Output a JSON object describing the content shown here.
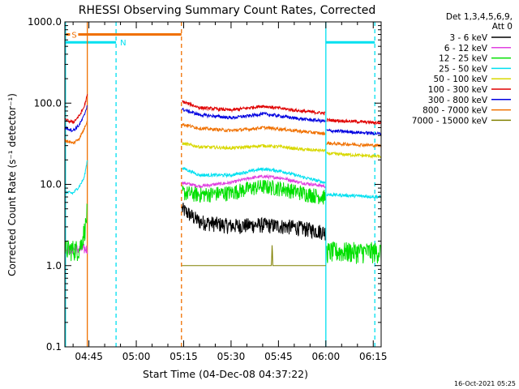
{
  "chart_data": {
    "type": "line",
    "title": "RHESSI Observing Summary Count Rates, Corrected",
    "xlabel": "Start Time (04-Dec-08 04:37:22)",
    "ylabel": "Corrected Count Rate (s⁻¹ detector⁻¹)",
    "yscale": "log",
    "ylim": [
      0.1,
      1000
    ],
    "xlim_minutes_after_04_00": [
      37.4,
      137.5
    ],
    "x_ticks": [
      {
        "label": "04:45",
        "minute": 45
      },
      {
        "label": "05:00",
        "minute": 60
      },
      {
        "label": "05:15",
        "minute": 75
      },
      {
        "label": "05:30",
        "minute": 90
      },
      {
        "label": "05:45",
        "minute": 105
      },
      {
        "label": "06:00",
        "minute": 120
      },
      {
        "label": "06:15",
        "minute": 135
      }
    ],
    "y_ticks": [
      {
        "label": "1000.0",
        "value": 1000
      },
      {
        "label": "100.0",
        "value": 100
      },
      {
        "label": "10.0",
        "value": 10
      },
      {
        "label": "1.0",
        "value": 1
      },
      {
        "label": "0.1",
        "value": 0.1
      }
    ],
    "legend": {
      "header1": "Det 1,3,4,5,6,9,",
      "header2": "Att 0",
      "placement": "right"
    },
    "series": [
      {
        "name": "3 - 6 keV",
        "color": "#000000",
        "segments": [
          {
            "x": [
              74.5,
              80,
              90,
              100,
              110,
              119.8
            ],
            "y": [
              5.0,
              3.5,
              3.1,
              3.2,
              3.0,
              2.6
            ]
          },
          {
            "x": [
              120.2,
              137.5
            ],
            "y": [
              null,
              null
            ]
          }
        ]
      },
      {
        "name": "6 - 12 keV",
        "color": "#e040e0",
        "segments": [
          {
            "x": [
              37.5,
              44.5
            ],
            "y": [
              1.6,
              1.6
            ]
          },
          {
            "x": [
              74.5,
              80,
              90,
              96,
              100,
              106,
              112,
              119.8
            ],
            "y": [
              10.5,
              9.5,
              10.5,
              12.0,
              12.5,
              12.0,
              10.5,
              9.5
            ]
          }
        ]
      },
      {
        "name": "12 - 25 keV",
        "color": "#00e000",
        "segments": [
          {
            "x": [
              37.5,
              42,
              43,
              44.0,
              44.5
            ],
            "y": [
              1.6,
              1.6,
              2.2,
              3.2,
              4.8
            ]
          },
          {
            "x": [
              74.5,
              80,
              90,
              96,
              100,
              106,
              112,
              119.8
            ],
            "y": [
              8.0,
              7.5,
              8.0,
              9.0,
              9.5,
              9.0,
              8.0,
              7.0
            ]
          },
          {
            "x": [
              120.3,
              137.5
            ],
            "y": [
              1.5,
              1.5
            ]
          }
        ]
      },
      {
        "name": "25 - 50 keV",
        "color": "#00e0f0",
        "segments": [
          {
            "x": [
              37.5,
              40,
              42,
              43.5,
              44.5
            ],
            "y": [
              8.0,
              7.8,
              9.5,
              12,
              20
            ]
          },
          {
            "x": [
              74.5,
              80,
              90,
              96,
              100,
              106,
              112,
              119.8
            ],
            "y": [
              16,
              13,
              13,
              14.5,
              15.5,
              14.5,
              12.5,
              10.5
            ]
          },
          {
            "x": [
              120.3,
              137.5
            ],
            "y": [
              7.5,
              7.0
            ]
          }
        ]
      },
      {
        "name": "50 - 100 keV",
        "color": "#d8d800",
        "segments": [
          {
            "x": [
              74.5,
              80,
              90,
              96,
              100,
              106,
              112,
              119.8
            ],
            "y": [
              32,
              29,
              28,
              29,
              30,
              29,
              27,
              26
            ]
          },
          {
            "x": [
              120.3,
              137.5
            ],
            "y": [
              24,
              22
            ]
          }
        ]
      },
      {
        "name": "100 - 300 keV",
        "color": "#e00000",
        "segments": [
          {
            "x": [
              37.5,
              40,
              42,
              43.5,
              44.5
            ],
            "y": [
              62,
              58,
              70,
              90,
              125
            ]
          },
          {
            "x": [
              74.5,
              80,
              90,
              96,
              100,
              106,
              112,
              119.8
            ],
            "y": [
              105,
              88,
              82,
              88,
              92,
              86,
              80,
              75
            ]
          },
          {
            "x": [
              120.3,
              137.5
            ],
            "y": [
              62,
              57
            ]
          }
        ]
      },
      {
        "name": "300 - 800 keV",
        "color": "#0000e0",
        "segments": [
          {
            "x": [
              37.5,
              40,
              42,
              43.5,
              44.5
            ],
            "y": [
              50,
              46,
              54,
              70,
              95
            ]
          },
          {
            "x": [
              74.5,
              80,
              90,
              96,
              100,
              106,
              112,
              119.8
            ],
            "y": [
              84,
              72,
              66,
              70,
              74,
              69,
              64,
              60
            ]
          },
          {
            "x": [
              120.3,
              137.5
            ],
            "y": [
              46,
              42
            ]
          }
        ]
      },
      {
        "name": "800 - 7000 keV",
        "color": "#f07000",
        "segments": [
          {
            "x": [
              37.5,
              40,
              42,
              43.5,
              44.5
            ],
            "y": [
              35,
              32,
              37,
              48,
              62
            ]
          },
          {
            "x": [
              74.5,
              80,
              90,
              96,
              100,
              106,
              112,
              119.8
            ],
            "y": [
              55,
              49,
              46,
              48,
              50,
              48,
              45,
              42
            ]
          },
          {
            "x": [
              120.3,
              137.5
            ],
            "y": [
              32,
              30
            ]
          }
        ]
      },
      {
        "name": "7000 - 15000 keV",
        "color": "#808000",
        "segments": [
          {
            "x": [
              74.5,
              90,
              102.8,
              103.0,
              103.2,
              118,
              120
            ],
            "y": [
              1.0,
              1.0,
              1.0,
              2.0,
              1.0,
              1.0,
              1.0
            ]
          }
        ]
      }
    ],
    "annotations": [
      {
        "text": "S",
        "color": "#f07000",
        "x_start": 37.5,
        "x_end": 74.3,
        "y": 700
      },
      {
        "text": "N",
        "color": "#00e0f0",
        "x_start": 37.5,
        "x_end": 53.6,
        "y": 560
      },
      {
        "text": "",
        "color": "#00e0f0",
        "x_start": 120.0,
        "x_end": 135.5,
        "y": 560
      }
    ],
    "vertical_lines": [
      {
        "minute": 37.6,
        "color": "#00e0f0",
        "style": "solid"
      },
      {
        "minute": 44.5,
        "color": "#f07000",
        "style": "solid"
      },
      {
        "minute": 53.6,
        "color": "#00e0f0",
        "style": "dashed"
      },
      {
        "minute": 74.3,
        "color": "#f07000",
        "style": "dashed"
      },
      {
        "minute": 120.0,
        "color": "#00e0f0",
        "style": "solid"
      },
      {
        "minute": 135.5,
        "color": "#00e0f0",
        "style": "dashed"
      }
    ],
    "grid": false
  },
  "footer": {
    "timestamp": "16-Oct-2021 05:25"
  }
}
